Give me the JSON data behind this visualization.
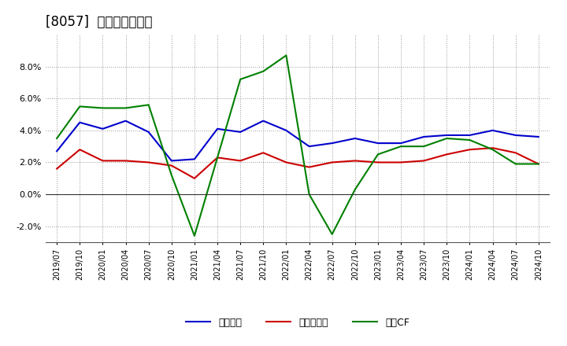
{
  "title": "[8057]  マージンの推移",
  "x_labels": [
    "2019/07",
    "2019/10",
    "2020/01",
    "2020/04",
    "2020/07",
    "2020/10",
    "2021/01",
    "2021/04",
    "2021/07",
    "2021/10",
    "2022/01",
    "2022/04",
    "2022/07",
    "2022/10",
    "2023/01",
    "2023/04",
    "2023/07",
    "2023/10",
    "2024/01",
    "2024/04",
    "2024/07",
    "2024/10"
  ],
  "keijo_rieki": [
    2.7,
    4.5,
    4.1,
    4.6,
    3.9,
    2.1,
    2.2,
    4.1,
    3.9,
    4.6,
    4.0,
    3.0,
    3.2,
    3.5,
    3.2,
    3.2,
    3.6,
    3.7,
    3.7,
    4.0,
    3.7,
    3.6
  ],
  "toki_junrieki": [
    1.6,
    2.8,
    2.1,
    2.1,
    2.0,
    1.8,
    1.0,
    2.3,
    2.1,
    2.6,
    2.0,
    1.7,
    2.0,
    2.1,
    2.0,
    2.0,
    2.1,
    2.5,
    2.8,
    2.9,
    2.6,
    1.9
  ],
  "eigyo_cf": [
    3.5,
    5.5,
    5.4,
    5.4,
    5.6,
    1.2,
    -2.6,
    2.3,
    7.2,
    7.7,
    8.7,
    0.0,
    -2.5,
    0.3,
    2.5,
    3.0,
    3.0,
    3.5,
    3.4,
    2.8,
    1.9,
    1.9
  ],
  "keijo_color": "#0000cc",
  "toki_color": "#cc0000",
  "eigyo_color": "#008000",
  "ylim": [
    -3.0,
    10.0
  ],
  "yticks": [
    -2.0,
    0.0,
    2.0,
    4.0,
    6.0,
    8.0
  ],
  "background_color": "#ffffff",
  "grid_color": "#999999",
  "legend_labels": [
    "経常利益",
    "当期純利益",
    "営業CF"
  ]
}
